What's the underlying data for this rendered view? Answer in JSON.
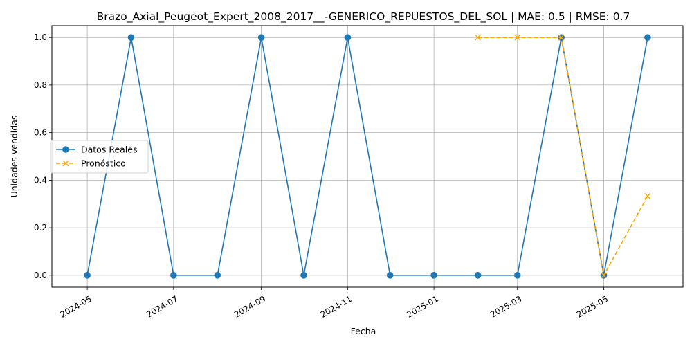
{
  "chart_data": {
    "type": "line",
    "title": "Brazo_Axial_Peugeot_Expert_2008_2017__-GENERICO_REPUESTOS_DEL_SOL | MAE: 0.5 | RMSE: 0.7",
    "xlabel": "Fecha",
    "ylabel": "Unidades vendidas",
    "xlim": [
      "2024-04-06",
      "2025-06-26"
    ],
    "ylim": [
      -0.05,
      1.05
    ],
    "grid": true,
    "legend_position": "center-left",
    "x_ticks": [
      "2024-05",
      "2024-07",
      "2024-09",
      "2024-11",
      "2025-01",
      "2025-03",
      "2025-05"
    ],
    "y_ticks": [
      "0.0",
      "0.2",
      "0.4",
      "0.6",
      "0.8",
      "1.0"
    ],
    "series": [
      {
        "name": "Datos Reales",
        "color": "#1f77b4",
        "marker": "circle",
        "line_style": "solid",
        "x": [
          "2024-05-01",
          "2024-06-01",
          "2024-07-01",
          "2024-08-01",
          "2024-09-01",
          "2024-10-01",
          "2024-11-01",
          "2024-12-01",
          "2025-01-01",
          "2025-02-01",
          "2025-03-01",
          "2025-04-01",
          "2025-05-01",
          "2025-06-01"
        ],
        "y": [
          0,
          1,
          0,
          0,
          1,
          0,
          1,
          0,
          0,
          0,
          0,
          1,
          0,
          1
        ]
      },
      {
        "name": "Pronóstico",
        "color": "#ffa500",
        "marker": "x",
        "line_style": "dashed",
        "x": [
          "2025-02-01",
          "2025-03-01",
          "2025-04-01",
          "2025-05-01",
          "2025-06-01"
        ],
        "y": [
          1,
          1,
          1,
          0,
          0.333
        ]
      }
    ]
  }
}
